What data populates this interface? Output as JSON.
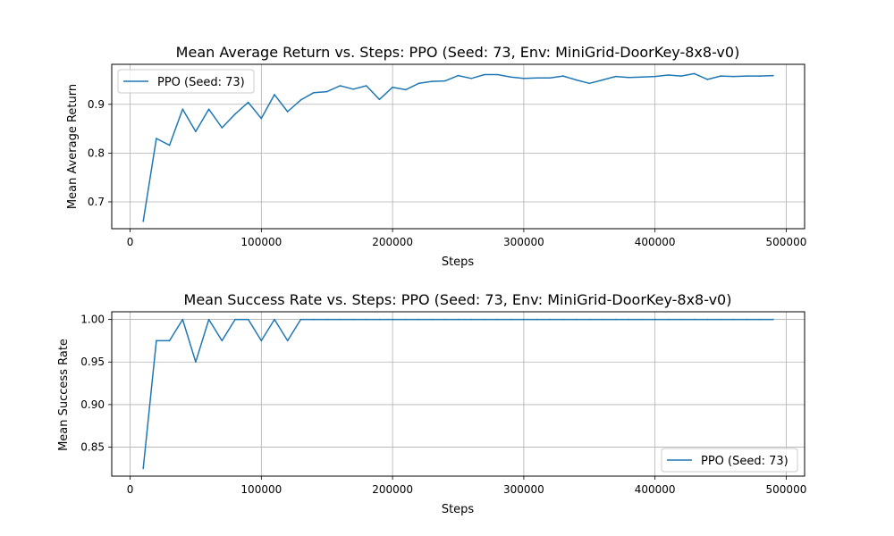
{
  "chart_data": [
    {
      "type": "line",
      "title": "Mean Average Return vs. Steps: PPO (Seed: 73, Env: MiniGrid-DoorKey-8x8-v0)",
      "xlabel": "Steps",
      "ylabel": "Mean Average Return",
      "xlim": [
        -14000,
        514000
      ],
      "ylim": [
        0.645,
        0.982
      ],
      "xticks": [
        0,
        100000,
        200000,
        300000,
        400000,
        500000
      ],
      "xtick_labels": [
        "0",
        "100000",
        "200000",
        "300000",
        "400000",
        "500000"
      ],
      "yticks": [
        0.7,
        0.8,
        0.9
      ],
      "ytick_labels": [
        "0.7",
        "0.8",
        "0.9"
      ],
      "grid": true,
      "legend_position": "top-left",
      "series": [
        {
          "name": "PPO (Seed: 73)",
          "color": "#1f77b4",
          "x": [
            10000,
            20000,
            30000,
            40000,
            50000,
            60000,
            70000,
            80000,
            90000,
            100000,
            110000,
            120000,
            130000,
            140000,
            150000,
            160000,
            170000,
            180000,
            190000,
            200000,
            210000,
            220000,
            230000,
            240000,
            250000,
            260000,
            270000,
            280000,
            290000,
            300000,
            310000,
            320000,
            330000,
            340000,
            350000,
            360000,
            370000,
            380000,
            390000,
            400000,
            410000,
            420000,
            430000,
            440000,
            450000,
            460000,
            470000,
            480000,
            490000
          ],
          "y": [
            0.66,
            0.83,
            0.816,
            0.89,
            0.844,
            0.89,
            0.852,
            0.88,
            0.904,
            0.871,
            0.92,
            0.885,
            0.909,
            0.924,
            0.926,
            0.938,
            0.931,
            0.938,
            0.91,
            0.935,
            0.93,
            0.943,
            0.947,
            0.948,
            0.959,
            0.953,
            0.961,
            0.961,
            0.956,
            0.953,
            0.954,
            0.954,
            0.958,
            0.95,
            0.943,
            0.95,
            0.957,
            0.955,
            0.956,
            0.957,
            0.96,
            0.958,
            0.963,
            0.951,
            0.958,
            0.957,
            0.958,
            0.958,
            0.959
          ]
        }
      ]
    },
    {
      "type": "line",
      "title": "Mean Success Rate vs. Steps: PPO (Seed: 73, Env: MiniGrid-DoorKey-8x8-v0)",
      "xlabel": "Steps",
      "ylabel": "Mean Success Rate",
      "xlim": [
        -14000,
        514000
      ],
      "ylim": [
        0.816,
        1.009
      ],
      "xticks": [
        0,
        100000,
        200000,
        300000,
        400000,
        500000
      ],
      "xtick_labels": [
        "0",
        "100000",
        "200000",
        "300000",
        "400000",
        "500000"
      ],
      "yticks": [
        0.85,
        0.9,
        0.95,
        1.0
      ],
      "ytick_labels": [
        "0.85",
        "0.90",
        "0.95",
        "1.00"
      ],
      "grid": true,
      "legend_position": "bottom-right",
      "series": [
        {
          "name": "PPO (Seed: 73)",
          "color": "#1f77b4",
          "x": [
            10000,
            20000,
            30000,
            40000,
            50000,
            60000,
            70000,
            80000,
            90000,
            100000,
            110000,
            120000,
            130000,
            140000,
            150000,
            160000,
            170000,
            180000,
            190000,
            200000,
            210000,
            220000,
            230000,
            240000,
            250000,
            260000,
            270000,
            280000,
            290000,
            300000,
            310000,
            320000,
            330000,
            340000,
            350000,
            360000,
            370000,
            380000,
            390000,
            400000,
            410000,
            420000,
            430000,
            440000,
            450000,
            460000,
            470000,
            480000,
            490000
          ],
          "y": [
            0.825,
            0.975,
            0.975,
            1.0,
            0.95,
            1.0,
            0.975,
            1.0,
            1.0,
            0.975,
            1.0,
            0.975,
            1.0,
            1.0,
            1.0,
            1.0,
            1.0,
            1.0,
            1.0,
            1.0,
            1.0,
            1.0,
            1.0,
            1.0,
            1.0,
            1.0,
            1.0,
            1.0,
            1.0,
            1.0,
            1.0,
            1.0,
            1.0,
            1.0,
            1.0,
            1.0,
            1.0,
            1.0,
            1.0,
            1.0,
            1.0,
            1.0,
            1.0,
            1.0,
            1.0,
            1.0,
            1.0,
            1.0,
            1.0
          ]
        }
      ]
    }
  ]
}
